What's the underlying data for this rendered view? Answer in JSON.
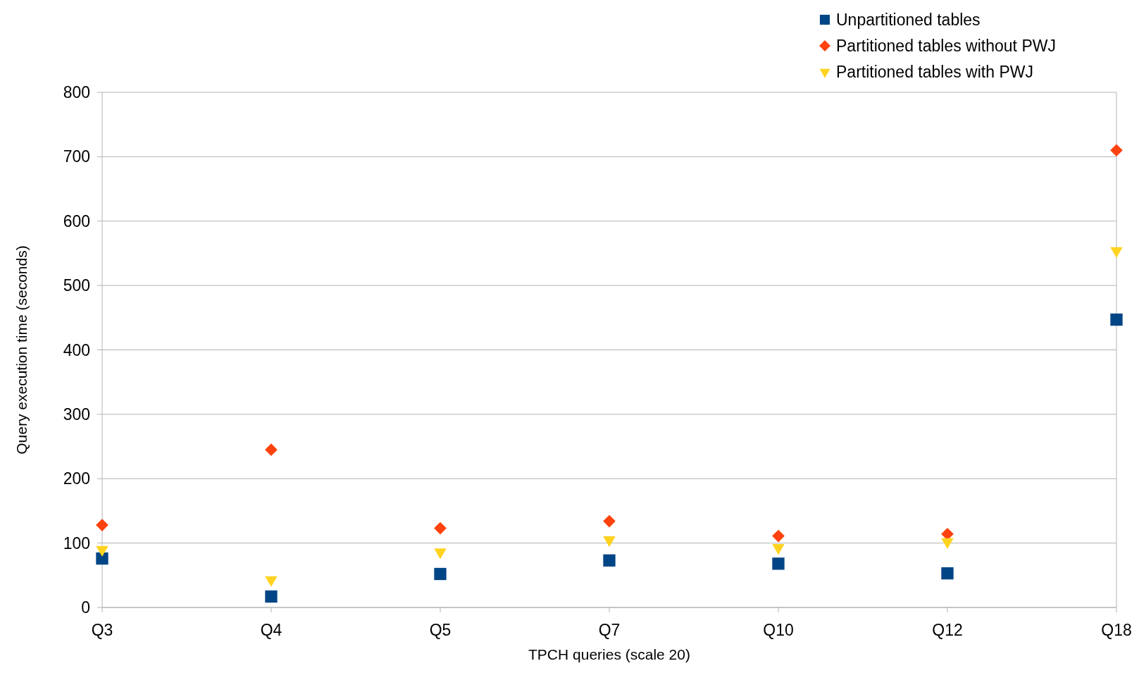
{
  "chart_data": {
    "type": "scatter",
    "xlabel": "TPCH queries (scale 20)",
    "ylabel": "Query execution time (seconds)",
    "categories": [
      "Q3",
      "Q4",
      "Q5",
      "Q7",
      "Q10",
      "Q12",
      "Q18"
    ],
    "series": [
      {
        "name": "Unpartitioned tables",
        "color": "#004586",
        "marker": "square",
        "values": [
          76,
          17,
          52,
          73,
          68,
          53,
          447
        ]
      },
      {
        "name": "Partitioned tables without PWJ",
        "color": "#ff420e",
        "marker": "diamond",
        "values": [
          128,
          245,
          123,
          134,
          111,
          114,
          710
        ]
      },
      {
        "name": "Partitioned tables with PWJ",
        "color": "#ffd320",
        "marker": "triangle",
        "values": [
          90,
          43,
          86,
          105,
          93,
          102,
          554
        ]
      }
    ],
    "ylim": [
      0,
      800
    ],
    "yticks": [
      0,
      100,
      200,
      300,
      400,
      500,
      600,
      700,
      800
    ],
    "grid": "y",
    "legend": "top right"
  }
}
